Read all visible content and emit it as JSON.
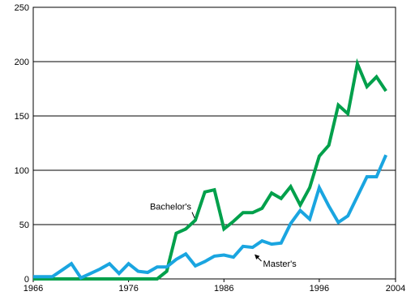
{
  "chart_data": {
    "type": "line",
    "title": "",
    "xlabel": "",
    "ylabel": "",
    "xlim": [
      1966,
      2004
    ],
    "ylim": [
      0,
      250
    ],
    "x_ticks": [
      1966,
      1976,
      1986,
      1996,
      2004
    ],
    "x_tick_labels": [
      "1966",
      "1976",
      "1986",
      "1996",
      "2004"
    ],
    "y_ticks": [
      0,
      50,
      100,
      150,
      200,
      250
    ],
    "y_tick_labels": [
      "0",
      "50",
      "100",
      "150",
      "200",
      "250"
    ],
    "grid": "horizontal",
    "legend": "none",
    "series": [
      {
        "name": "Bachelor's",
        "color": "#00a04b",
        "x": [
          1966,
          1967,
          1968,
          1969,
          1970,
          1971,
          1972,
          1973,
          1974,
          1975,
          1976,
          1977,
          1978,
          1979,
          1980,
          1981,
          1982,
          1983,
          1984,
          1985,
          1986,
          1987,
          1988,
          1989,
          1990,
          1991,
          1992,
          1993,
          1994,
          1995,
          1996,
          1997,
          1998,
          1999,
          2000,
          2001,
          2002,
          2003
        ],
        "values": [
          0,
          0,
          0,
          0,
          0,
          0,
          0,
          0,
          0,
          0,
          0,
          0,
          0,
          0,
          7,
          42,
          46,
          54,
          80,
          82,
          46,
          53,
          61,
          61,
          65,
          79,
          74,
          85,
          68,
          84,
          113,
          123,
          160,
          152,
          198,
          177,
          186,
          173
        ]
      },
      {
        "name": "Master's",
        "color": "#1aa5e0",
        "x": [
          1966,
          1967,
          1968,
          1969,
          1970,
          1971,
          1972,
          1973,
          1974,
          1975,
          1976,
          1977,
          1978,
          1979,
          1980,
          1981,
          1982,
          1983,
          1984,
          1985,
          1986,
          1987,
          1988,
          1989,
          1990,
          1991,
          1992,
          1993,
          1994,
          1995,
          1996,
          1997,
          1998,
          1999,
          2000,
          2001,
          2002,
          2003
        ],
        "values": [
          2,
          2,
          2,
          8,
          14,
          1,
          5,
          9,
          14,
          5,
          14,
          7,
          6,
          11,
          11,
          18,
          23,
          12,
          16,
          21,
          22,
          20,
          30,
          29,
          35,
          32,
          33,
          51,
          63,
          55,
          84,
          67,
          52,
          58,
          76,
          94,
          94,
          114
        ]
      }
    ],
    "annotations": [
      {
        "text": "Bachelor's",
        "series": "Bachelor's",
        "x": 1983,
        "y": 54
      },
      {
        "text": "Master's",
        "series": "Master's",
        "x": 1989,
        "y": 29
      }
    ]
  }
}
